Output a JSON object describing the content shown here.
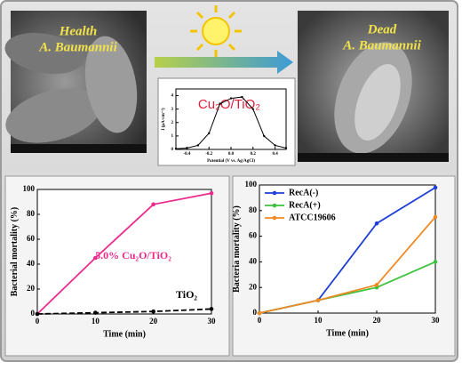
{
  "sem_images": [
    {
      "labels": [
        "Health",
        "A. Baumannii"
      ]
    },
    {
      "labels": [
        "Dead",
        "A. Baumannii"
      ]
    }
  ],
  "chart_data": [
    {
      "type": "line",
      "title": "Cu₂O/TiO₂",
      "x_label": "Potential (V vs. Ag/AgCl)",
      "y_label": "I (μA·cm⁻²)",
      "x": [
        -0.5,
        -0.4,
        -0.3,
        -0.2,
        -0.1,
        0,
        0.1,
        0.2,
        0.3,
        0.4,
        0.5
      ],
      "series": [
        {
          "name": null,
          "color": "#000000",
          "values": [
            0.05,
            0.1,
            0.3,
            1.2,
            3.4,
            3.8,
            3.9,
            3.0,
            1.0,
            0.3,
            0.1
          ]
        }
      ],
      "xlim": [
        -0.5,
        0.5
      ],
      "xticks": [
        -0.4,
        -0.2,
        {
          "value": 0,
          "label": "0.0"
        },
        0.2,
        0.4
      ],
      "ylim": [
        0,
        4.5
      ],
      "yticks": [
        0,
        1,
        2,
        3,
        4
      ],
      "legend": "none"
    },
    {
      "type": "line",
      "x_label": "Time (min)",
      "y_label": "Bacterial mortality (%)",
      "x": [
        0,
        10,
        20,
        30
      ],
      "series": [
        {
          "name": "5.0% Cu₂O/TiO₂",
          "color": "#ec2a8c",
          "values": [
            0,
            45,
            88,
            97
          ]
        },
        {
          "name": "TiO₂",
          "color": "#000000",
          "values": [
            0,
            1,
            2,
            4
          ]
        }
      ],
      "xlim": [
        0,
        30
      ],
      "xticks": [
        0,
        10,
        20,
        30
      ],
      "ylim": [
        0,
        100
      ],
      "yticks": [
        0,
        20,
        40,
        60,
        80,
        100
      ],
      "legend": "inline"
    },
    {
      "type": "line",
      "x_label": "Time (min)",
      "y_label": "Bacteria mortality (%)",
      "x": [
        0,
        10,
        20,
        30
      ],
      "series": [
        {
          "name": "RecA(-)",
          "color": "#1f3fd6",
          "values": [
            0,
            10,
            70,
            98
          ]
        },
        {
          "name": "RecA(+)",
          "color": "#3cc23c",
          "values": [
            0,
            10,
            20,
            40
          ]
        },
        {
          "name": "ATCC19606",
          "color": "#f08a24",
          "values": [
            0,
            10,
            22,
            75
          ]
        }
      ],
      "xlim": [
        0,
        30
      ],
      "xticks": [
        0,
        10,
        20,
        30
      ],
      "ylim": [
        0,
        100
      ],
      "yticks": [
        0,
        20,
        40,
        60,
        80,
        100
      ],
      "legend": "upper left"
    }
  ]
}
